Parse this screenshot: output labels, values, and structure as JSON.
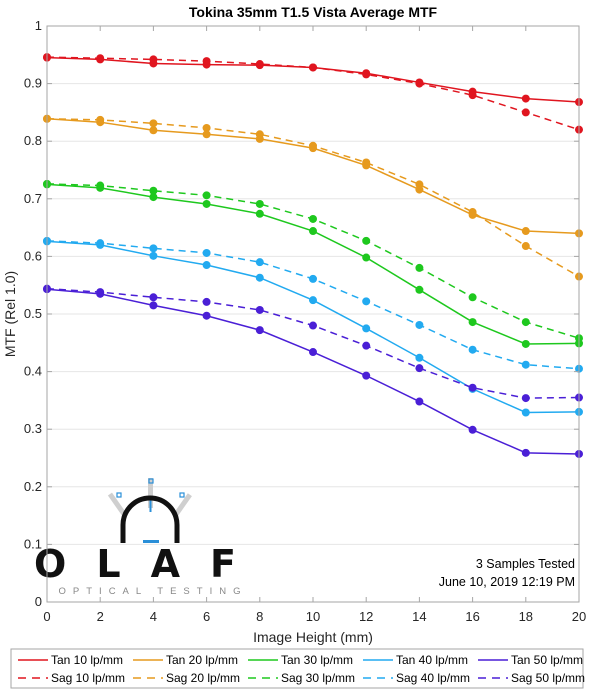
{
  "chart_data": {
    "type": "line",
    "title": "Tokina 35mm T1.5 Vista Average MTF",
    "xlabel": "Image Height (mm)",
    "ylabel": "MTF (Rel 1.0)",
    "xlim": [
      0,
      20
    ],
    "ylim": [
      0,
      1
    ],
    "grid": "horizontal",
    "x": [
      0,
      2,
      4,
      6,
      8,
      10,
      12,
      14,
      16,
      18,
      20
    ],
    "x_ticks": [
      "0",
      "2",
      "4",
      "6",
      "8",
      "10",
      "12",
      "14",
      "16",
      "18",
      "20"
    ],
    "y_ticks": [
      "0",
      "0.1",
      "0.2",
      "0.3",
      "0.4",
      "0.5",
      "0.6",
      "0.7",
      "0.8",
      "0.9",
      "1"
    ],
    "series": [
      {
        "name": "Tan 10 lp/mm",
        "color": "#e0151f",
        "dash": false,
        "values": [
          0.945,
          0.942,
          0.935,
          0.933,
          0.932,
          0.928,
          0.918,
          0.902,
          0.886,
          0.874,
          0.868
        ]
      },
      {
        "name": "Tan 20 lp/mm",
        "color": "#e69a1e",
        "dash": false,
        "values": [
          0.839,
          0.833,
          0.819,
          0.812,
          0.804,
          0.788,
          0.758,
          0.716,
          0.672,
          0.644,
          0.64
        ]
      },
      {
        "name": "Tan 30 lp/mm",
        "color": "#1ec81e",
        "dash": false,
        "values": [
          0.725,
          0.719,
          0.703,
          0.691,
          0.674,
          0.644,
          0.598,
          0.542,
          0.486,
          0.448,
          0.449
        ]
      },
      {
        "name": "Tan 40 lp/mm",
        "color": "#22aaf0",
        "dash": false,
        "values": [
          0.626,
          0.62,
          0.601,
          0.585,
          0.563,
          0.524,
          0.475,
          0.424,
          0.37,
          0.329,
          0.33
        ]
      },
      {
        "name": "Tan 50 lp/mm",
        "color": "#4a1fd6",
        "dash": false,
        "values": [
          0.543,
          0.535,
          0.515,
          0.497,
          0.472,
          0.434,
          0.393,
          0.348,
          0.299,
          0.259,
          0.257
        ]
      },
      {
        "name": "Sag 10 lp/mm",
        "color": "#e0151f",
        "dash": true,
        "values": [
          0.946,
          0.944,
          0.942,
          0.939,
          0.934,
          0.928,
          0.916,
          0.9,
          0.88,
          0.85,
          0.82
        ]
      },
      {
        "name": "Sag 20 lp/mm",
        "color": "#e69a1e",
        "dash": true,
        "values": [
          0.839,
          0.837,
          0.831,
          0.823,
          0.812,
          0.792,
          0.763,
          0.725,
          0.677,
          0.618,
          0.565
        ]
      },
      {
        "name": "Sag 30 lp/mm",
        "color": "#1ec81e",
        "dash": true,
        "values": [
          0.726,
          0.723,
          0.714,
          0.706,
          0.691,
          0.665,
          0.627,
          0.58,
          0.529,
          0.486,
          0.458
        ]
      },
      {
        "name": "Sag 40 lp/mm",
        "color": "#22aaf0",
        "dash": true,
        "values": [
          0.627,
          0.623,
          0.614,
          0.606,
          0.59,
          0.561,
          0.522,
          0.481,
          0.438,
          0.412,
          0.405
        ]
      },
      {
        "name": "Sag 50 lp/mm",
        "color": "#4a1fd6",
        "dash": true,
        "values": [
          0.544,
          0.538,
          0.529,
          0.521,
          0.507,
          0.48,
          0.445,
          0.406,
          0.372,
          0.354,
          0.355
        ]
      }
    ],
    "legend_placement": "bottom",
    "annotations": [
      "3 Samples Tested",
      "June 10, 2019 12:19 PM"
    ]
  },
  "logo": {
    "text": "OLAF",
    "subtitle": "OPTICAL TESTING"
  }
}
